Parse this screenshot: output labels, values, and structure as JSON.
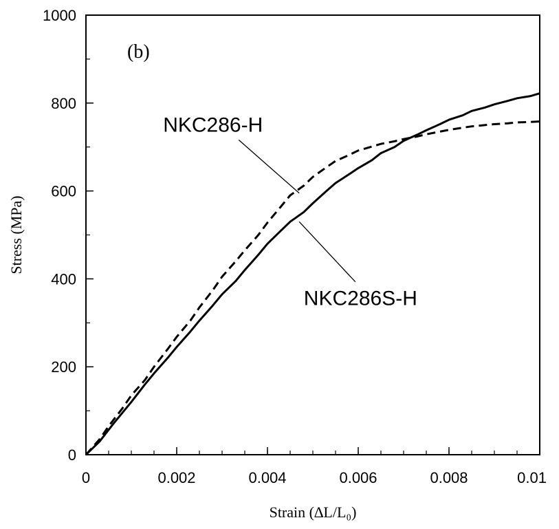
{
  "chart_data": {
    "type": "line",
    "panel_label": "(b)",
    "title": "",
    "xlabel": "Strain (∆L/L₀)",
    "ylabel": "Stress (MPa)",
    "xlim": [
      0,
      0.01
    ],
    "ylim": [
      0,
      1000
    ],
    "x_ticks": [
      0,
      0.002,
      0.004,
      0.006,
      0.008,
      0.01
    ],
    "x_tick_labels": [
      "0",
      "0.002",
      "0.004",
      "0.006",
      "0.008",
      "0.01"
    ],
    "y_ticks": [
      0,
      200,
      400,
      600,
      800,
      1000
    ],
    "y_tick_labels": [
      "0",
      "200",
      "400",
      "600",
      "800",
      "1000"
    ],
    "x_minor_step": 0.0005,
    "y_minor_step": 100,
    "grid": false,
    "legend": "none",
    "series": [
      {
        "name": "NKC286S-H",
        "style": "solid",
        "color": "#000000",
        "x": [
          0,
          0.0003,
          0.0006,
          0.0008,
          0.001,
          0.0013,
          0.0015,
          0.0018,
          0.002,
          0.0023,
          0.0025,
          0.0028,
          0.003,
          0.0033,
          0.0035,
          0.0038,
          0.004,
          0.0043,
          0.0045,
          0.0048,
          0.005,
          0.0053,
          0.0055,
          0.0058,
          0.006,
          0.0063,
          0.0065,
          0.0068,
          0.007,
          0.0073,
          0.0075,
          0.0078,
          0.008,
          0.0083,
          0.0085,
          0.0088,
          0.009,
          0.0093,
          0.0095,
          0.0098,
          0.01
        ],
        "y": [
          0,
          30,
          70,
          95,
          120,
          160,
          185,
          220,
          245,
          280,
          305,
          340,
          365,
          395,
          420,
          455,
          480,
          510,
          530,
          552,
          572,
          600,
          618,
          638,
          652,
          670,
          686,
          700,
          714,
          728,
          738,
          752,
          762,
          772,
          782,
          790,
          797,
          805,
          811,
          816,
          822
        ]
      },
      {
        "name": "NKC286-H",
        "style": "dashed",
        "color": "#000000",
        "x": [
          0,
          0.0003,
          0.0005,
          0.0008,
          0.001,
          0.0013,
          0.0015,
          0.0018,
          0.002,
          0.0023,
          0.0025,
          0.0028,
          0.003,
          0.0033,
          0.0035,
          0.0038,
          0.004,
          0.0043,
          0.0045,
          0.0048,
          0.005,
          0.0053,
          0.0055,
          0.0058,
          0.006,
          0.0063,
          0.0065,
          0.0068,
          0.007,
          0.0073,
          0.0075,
          0.0078,
          0.008,
          0.0083,
          0.0085,
          0.0088,
          0.009,
          0.0093,
          0.0095,
          0.0098,
          0.01
        ],
        "y": [
          0,
          35,
          65,
          105,
          135,
          170,
          200,
          240,
          268,
          305,
          335,
          375,
          405,
          440,
          465,
          500,
          528,
          565,
          590,
          612,
          632,
          654,
          668,
          682,
          692,
          701,
          707,
          713,
          718,
          724,
          729,
          735,
          739,
          744,
          747,
          750,
          752,
          754,
          756,
          757,
          758
        ]
      }
    ],
    "annotations": [
      {
        "text": "NKC286-H",
        "series": "NKC286-H",
        "x": 0.0047,
        "y": 595,
        "label_x": 0.0017,
        "label_y": 735
      },
      {
        "text": "NKC286S-H",
        "series": "NKC286S-H",
        "x": 0.0047,
        "y": 530,
        "label_x": 0.0048,
        "label_y": 340
      }
    ]
  }
}
